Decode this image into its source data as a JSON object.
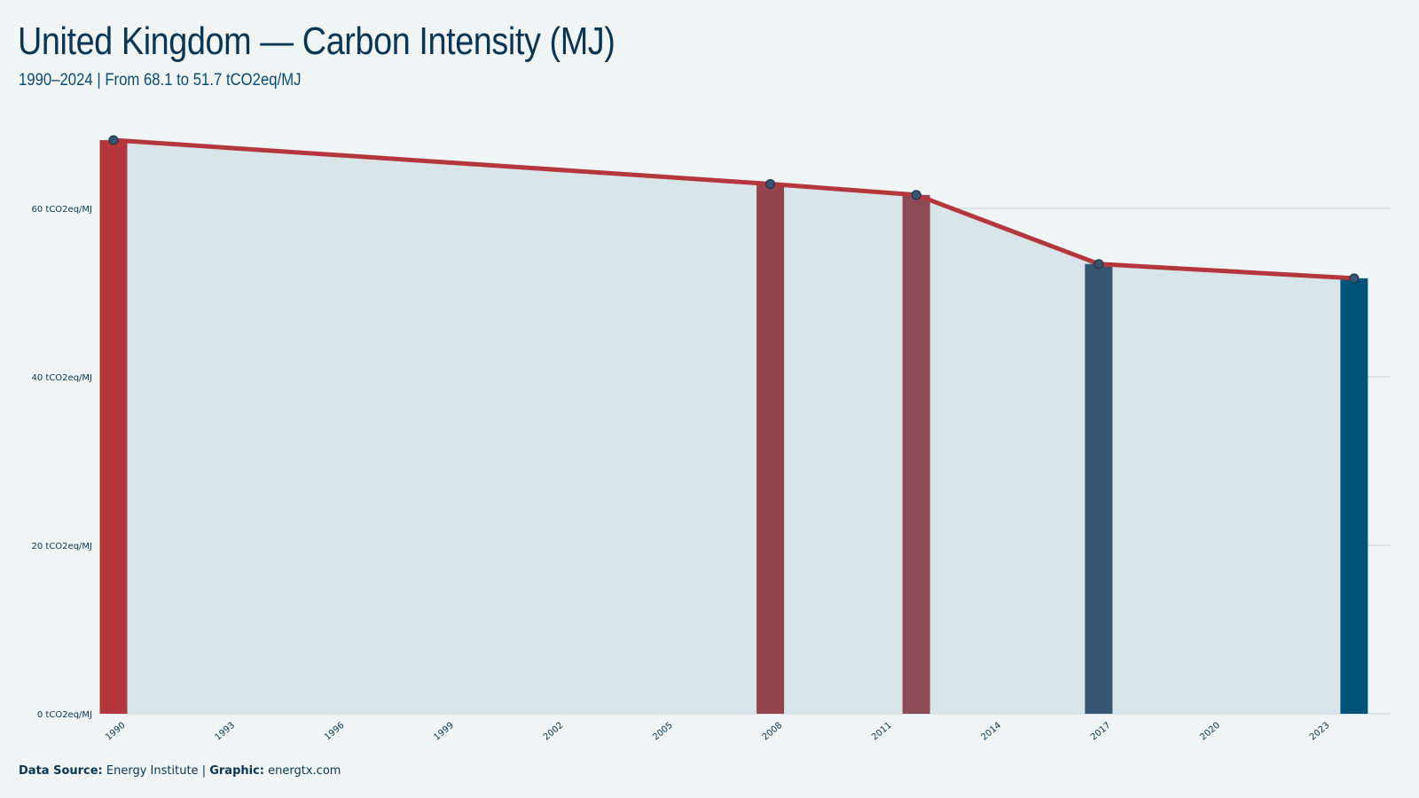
{
  "header": {
    "title": "United Kingdom — Carbon Intensity (MJ)",
    "subtitle": "1990–2024 | From 68.1 to 51.7 tCO2eq/MJ"
  },
  "footer": {
    "source_label": "Data Source:",
    "source_value": "Energy Institute",
    "separator": "|",
    "graphic_label": "Graphic:",
    "graphic_value": "energtx.com"
  },
  "colors": {
    "background": "#eff5f5",
    "area_fill": "#d7e4e8",
    "line": "#b3373b",
    "grid": "#c5d4da",
    "bar_1990": "#b3373b",
    "bar_2008": "#93444d",
    "bar_2012": "#8a4b55",
    "bar_2017": "#355573",
    "bar_2024": "#00547a"
  },
  "chart_data": {
    "type": "area",
    "title": "United Kingdom — Carbon Intensity (MJ)",
    "subtitle": "1990–2024 | From 68.1 to 51.7 tCO2eq/MJ",
    "xlim": [
      1990,
      2025
    ],
    "ylim": [
      0,
      70
    ],
    "y_ticks": [
      0,
      20,
      40,
      60
    ],
    "y_tick_labels": [
      "0 tCO2eq/MJ",
      "20 tCO2eq/MJ",
      "40 tCO2eq/MJ",
      "60 tCO2eq/MJ"
    ],
    "x_ticks": [
      1990,
      1993,
      1996,
      1999,
      2002,
      2005,
      2008,
      2011,
      2014,
      2017,
      2020,
      2023
    ],
    "grid": true,
    "series": [
      {
        "x": [
          1990,
          2008,
          2012,
          2017,
          2024
        ],
        "y": [
          68.1,
          62.9,
          61.6,
          53.4,
          51.7
        ]
      }
    ],
    "highlight_bars": [
      {
        "year": 1990,
        "value": 68.1,
        "color": "#b3373b"
      },
      {
        "year": 2008,
        "value": 62.9,
        "color": "#93444d"
      },
      {
        "year": 2012,
        "value": 61.6,
        "color": "#8a4b55"
      },
      {
        "year": 2017,
        "value": 53.4,
        "color": "#355573"
      },
      {
        "year": 2024,
        "value": 51.7,
        "color": "#00547a"
      }
    ]
  }
}
